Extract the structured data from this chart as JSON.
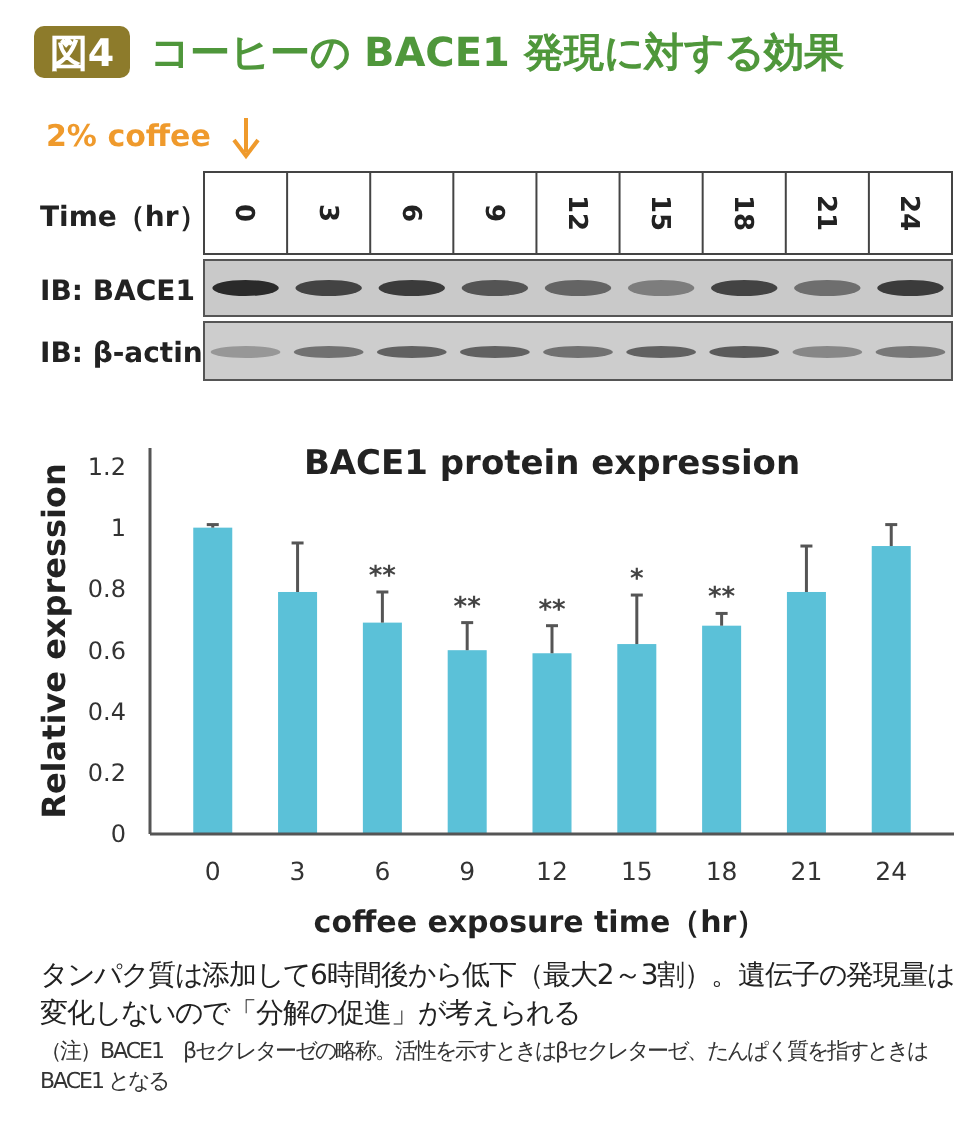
{
  "chart_data": {
    "type": "bar",
    "title": "BACE1 protein expression",
    "xlabel": "coffee exposure time（hr）",
    "ylabel": "Relative expression",
    "categories": [
      "0",
      "3",
      "6",
      "9",
      "12",
      "15",
      "18",
      "21",
      "24"
    ],
    "values": [
      1.0,
      0.79,
      0.69,
      0.6,
      0.59,
      0.62,
      0.68,
      0.79,
      0.94
    ],
    "errors": [
      [
        1.0,
        1.01
      ],
      [
        0.79,
        0.95
      ],
      [
        0.69,
        0.79
      ],
      [
        0.6,
        0.69
      ],
      [
        0.59,
        0.68
      ],
      [
        0.62,
        0.78
      ],
      [
        0.68,
        0.72
      ],
      [
        0.79,
        0.94
      ],
      [
        0.94,
        1.01
      ]
    ],
    "color": "#5bc1d8",
    "ylim": [
      0,
      1.26
    ],
    "yticks": [
      0,
      0.2,
      0.4,
      0.6,
      0.8,
      1,
      1.2
    ],
    "annotations": [
      {
        "text": "**",
        "x": "6",
        "y": 0.79
      },
      {
        "text": "**",
        "x": "9",
        "y": 0.69
      },
      {
        "text": "**",
        "x": "12",
        "y": 0.68
      },
      {
        "text": "*",
        "x": "15",
        "y": 0.78
      },
      {
        "text": "**",
        "x": "18",
        "y": 0.72
      },
      "図4",
      "コーヒーの BACE1 発現に対する効果",
      "2% coffee",
      "Time（hr）",
      "IB: BACE1",
      "IB: β-actin",
      "タンパク質は添加して6時間後から低下（最大2～3割）。遺伝子の発現量は変化しないので「分解の促進」が考えられる",
      "（注）BACE1　βセクレターゼの略称。活性を示すときはβセクレターゼ、たんぱく質を指すときは BACE1 となる"
    ]
  }
}
